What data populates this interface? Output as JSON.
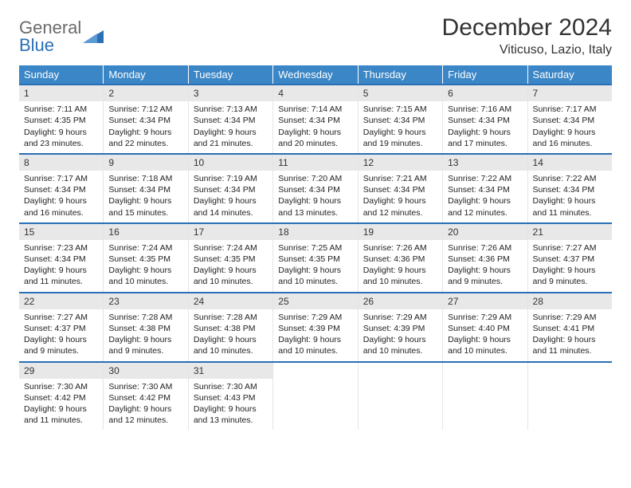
{
  "logo": {
    "text_gray": "General",
    "text_blue": "Blue",
    "triangle_color": "#2a6fb5"
  },
  "title": "December 2024",
  "location": "Viticuso, Lazio, Italy",
  "colors": {
    "header_bg": "#3b86c6",
    "header_text": "#ffffff",
    "week_divider": "#2a6fb5",
    "daynum_bg": "#e8e8e8",
    "body_text": "#222222"
  },
  "day_labels": [
    "Sunday",
    "Monday",
    "Tuesday",
    "Wednesday",
    "Thursday",
    "Friday",
    "Saturday"
  ],
  "weeks": [
    [
      {
        "n": "1",
        "sr": "Sunrise: 7:11 AM",
        "ss": "Sunset: 4:35 PM",
        "d1": "Daylight: 9 hours",
        "d2": "and 23 minutes."
      },
      {
        "n": "2",
        "sr": "Sunrise: 7:12 AM",
        "ss": "Sunset: 4:34 PM",
        "d1": "Daylight: 9 hours",
        "d2": "and 22 minutes."
      },
      {
        "n": "3",
        "sr": "Sunrise: 7:13 AM",
        "ss": "Sunset: 4:34 PM",
        "d1": "Daylight: 9 hours",
        "d2": "and 21 minutes."
      },
      {
        "n": "4",
        "sr": "Sunrise: 7:14 AM",
        "ss": "Sunset: 4:34 PM",
        "d1": "Daylight: 9 hours",
        "d2": "and 20 minutes."
      },
      {
        "n": "5",
        "sr": "Sunrise: 7:15 AM",
        "ss": "Sunset: 4:34 PM",
        "d1": "Daylight: 9 hours",
        "d2": "and 19 minutes."
      },
      {
        "n": "6",
        "sr": "Sunrise: 7:16 AM",
        "ss": "Sunset: 4:34 PM",
        "d1": "Daylight: 9 hours",
        "d2": "and 17 minutes."
      },
      {
        "n": "7",
        "sr": "Sunrise: 7:17 AM",
        "ss": "Sunset: 4:34 PM",
        "d1": "Daylight: 9 hours",
        "d2": "and 16 minutes."
      }
    ],
    [
      {
        "n": "8",
        "sr": "Sunrise: 7:17 AM",
        "ss": "Sunset: 4:34 PM",
        "d1": "Daylight: 9 hours",
        "d2": "and 16 minutes."
      },
      {
        "n": "9",
        "sr": "Sunrise: 7:18 AM",
        "ss": "Sunset: 4:34 PM",
        "d1": "Daylight: 9 hours",
        "d2": "and 15 minutes."
      },
      {
        "n": "10",
        "sr": "Sunrise: 7:19 AM",
        "ss": "Sunset: 4:34 PM",
        "d1": "Daylight: 9 hours",
        "d2": "and 14 minutes."
      },
      {
        "n": "11",
        "sr": "Sunrise: 7:20 AM",
        "ss": "Sunset: 4:34 PM",
        "d1": "Daylight: 9 hours",
        "d2": "and 13 minutes."
      },
      {
        "n": "12",
        "sr": "Sunrise: 7:21 AM",
        "ss": "Sunset: 4:34 PM",
        "d1": "Daylight: 9 hours",
        "d2": "and 12 minutes."
      },
      {
        "n": "13",
        "sr": "Sunrise: 7:22 AM",
        "ss": "Sunset: 4:34 PM",
        "d1": "Daylight: 9 hours",
        "d2": "and 12 minutes."
      },
      {
        "n": "14",
        "sr": "Sunrise: 7:22 AM",
        "ss": "Sunset: 4:34 PM",
        "d1": "Daylight: 9 hours",
        "d2": "and 11 minutes."
      }
    ],
    [
      {
        "n": "15",
        "sr": "Sunrise: 7:23 AM",
        "ss": "Sunset: 4:34 PM",
        "d1": "Daylight: 9 hours",
        "d2": "and 11 minutes."
      },
      {
        "n": "16",
        "sr": "Sunrise: 7:24 AM",
        "ss": "Sunset: 4:35 PM",
        "d1": "Daylight: 9 hours",
        "d2": "and 10 minutes."
      },
      {
        "n": "17",
        "sr": "Sunrise: 7:24 AM",
        "ss": "Sunset: 4:35 PM",
        "d1": "Daylight: 9 hours",
        "d2": "and 10 minutes."
      },
      {
        "n": "18",
        "sr": "Sunrise: 7:25 AM",
        "ss": "Sunset: 4:35 PM",
        "d1": "Daylight: 9 hours",
        "d2": "and 10 minutes."
      },
      {
        "n": "19",
        "sr": "Sunrise: 7:26 AM",
        "ss": "Sunset: 4:36 PM",
        "d1": "Daylight: 9 hours",
        "d2": "and 10 minutes."
      },
      {
        "n": "20",
        "sr": "Sunrise: 7:26 AM",
        "ss": "Sunset: 4:36 PM",
        "d1": "Daylight: 9 hours",
        "d2": "and 9 minutes."
      },
      {
        "n": "21",
        "sr": "Sunrise: 7:27 AM",
        "ss": "Sunset: 4:37 PM",
        "d1": "Daylight: 9 hours",
        "d2": "and 9 minutes."
      }
    ],
    [
      {
        "n": "22",
        "sr": "Sunrise: 7:27 AM",
        "ss": "Sunset: 4:37 PM",
        "d1": "Daylight: 9 hours",
        "d2": "and 9 minutes."
      },
      {
        "n": "23",
        "sr": "Sunrise: 7:28 AM",
        "ss": "Sunset: 4:38 PM",
        "d1": "Daylight: 9 hours",
        "d2": "and 9 minutes."
      },
      {
        "n": "24",
        "sr": "Sunrise: 7:28 AM",
        "ss": "Sunset: 4:38 PM",
        "d1": "Daylight: 9 hours",
        "d2": "and 10 minutes."
      },
      {
        "n": "25",
        "sr": "Sunrise: 7:29 AM",
        "ss": "Sunset: 4:39 PM",
        "d1": "Daylight: 9 hours",
        "d2": "and 10 minutes."
      },
      {
        "n": "26",
        "sr": "Sunrise: 7:29 AM",
        "ss": "Sunset: 4:39 PM",
        "d1": "Daylight: 9 hours",
        "d2": "and 10 minutes."
      },
      {
        "n": "27",
        "sr": "Sunrise: 7:29 AM",
        "ss": "Sunset: 4:40 PM",
        "d1": "Daylight: 9 hours",
        "d2": "and 10 minutes."
      },
      {
        "n": "28",
        "sr": "Sunrise: 7:29 AM",
        "ss": "Sunset: 4:41 PM",
        "d1": "Daylight: 9 hours",
        "d2": "and 11 minutes."
      }
    ],
    [
      {
        "n": "29",
        "sr": "Sunrise: 7:30 AM",
        "ss": "Sunset: 4:42 PM",
        "d1": "Daylight: 9 hours",
        "d2": "and 11 minutes."
      },
      {
        "n": "30",
        "sr": "Sunrise: 7:30 AM",
        "ss": "Sunset: 4:42 PM",
        "d1": "Daylight: 9 hours",
        "d2": "and 12 minutes."
      },
      {
        "n": "31",
        "sr": "Sunrise: 7:30 AM",
        "ss": "Sunset: 4:43 PM",
        "d1": "Daylight: 9 hours",
        "d2": "and 13 minutes."
      },
      {
        "empty": true
      },
      {
        "empty": true
      },
      {
        "empty": true
      },
      {
        "empty": true
      }
    ]
  ]
}
